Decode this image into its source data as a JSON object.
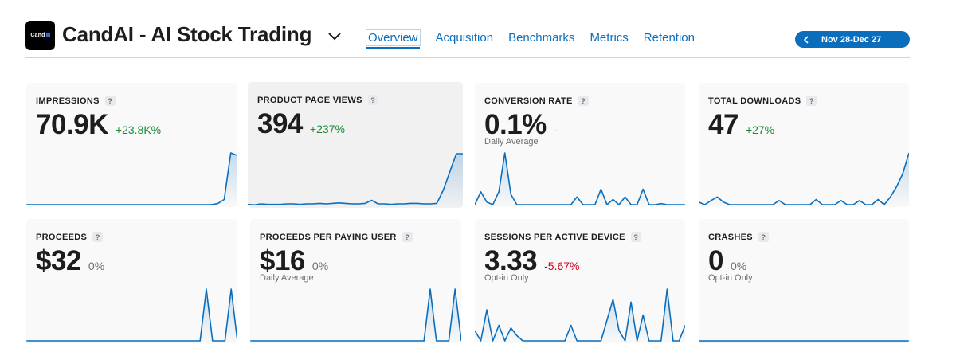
{
  "app": {
    "icon_text": "Cand",
    "title": "CandAI - AI Stock Trading"
  },
  "tabs": [
    {
      "label": "Overview",
      "active": true
    },
    {
      "label": "Acquisition",
      "active": false
    },
    {
      "label": "Benchmarks",
      "active": false
    },
    {
      "label": "Metrics",
      "active": false
    },
    {
      "label": "Retention",
      "active": false
    }
  ],
  "date_range": {
    "label": "Nov 28-Dec 27",
    "prev_icon": "chevron-left-icon"
  },
  "colors": {
    "accent": "#0a6ebd",
    "positive": "#1a8a36",
    "negative": "#d0021b",
    "neutral": "#6e6e73"
  },
  "cards": [
    {
      "id": "impressions",
      "label": "IMPRESSIONS",
      "value": "70.9K",
      "change": "+23.8K%",
      "change_type": "pos",
      "sub": "",
      "series": [
        0,
        0,
        0,
        0,
        0,
        0,
        0,
        0,
        0,
        0,
        0,
        0,
        0,
        0,
        0,
        0,
        0,
        0,
        0,
        0,
        0,
        0,
        0,
        0,
        0,
        0,
        0,
        0,
        0,
        2,
        10,
        100,
        95
      ]
    },
    {
      "id": "product-page-views",
      "label": "PRODUCT PAGE VIEWS",
      "value": "394",
      "change": "+237%",
      "change_type": "pos",
      "sub": "",
      "selected": true,
      "series": [
        2,
        1,
        3,
        2,
        2,
        2,
        3,
        3,
        2,
        3,
        3,
        4,
        3,
        4,
        5,
        4,
        3,
        3,
        4,
        10,
        3,
        3,
        2,
        3,
        3,
        4,
        4,
        3,
        3,
        4,
        30,
        65,
        100,
        100
      ]
    },
    {
      "id": "conversion-rate",
      "label": "CONVERSION RATE",
      "value": "0.1%",
      "change": "-",
      "change_type": "neg",
      "sub": "Daily Average",
      "series": [
        0,
        25,
        5,
        0,
        25,
        100,
        20,
        0,
        0,
        0,
        0,
        0,
        0,
        0,
        0,
        0,
        0,
        15,
        0,
        0,
        0,
        30,
        0,
        10,
        0,
        15,
        0,
        0,
        30,
        0,
        0,
        2,
        0,
        0,
        0,
        0
      ]
    },
    {
      "id": "total-downloads",
      "label": "TOTAL DOWNLOADS",
      "value": "47",
      "change": "+27%",
      "change_type": "pos",
      "sub": "",
      "series": [
        5,
        0,
        8,
        15,
        5,
        0,
        0,
        0,
        0,
        0,
        0,
        0,
        0,
        8,
        0,
        0,
        0,
        0,
        0,
        10,
        0,
        0,
        0,
        8,
        0,
        0,
        8,
        0,
        0,
        10,
        0,
        15,
        35,
        60,
        100
      ]
    },
    {
      "id": "proceeds",
      "label": "PROCEEDS",
      "value": "$32",
      "change": "0%",
      "change_type": "neu",
      "sub": "",
      "series": [
        0,
        0,
        0,
        0,
        0,
        0,
        0,
        0,
        0,
        0,
        0,
        0,
        0,
        0,
        0,
        0,
        0,
        0,
        0,
        0,
        0,
        0,
        0,
        0,
        0,
        0,
        0,
        0,
        0,
        100,
        0,
        0,
        0,
        100,
        0
      ]
    },
    {
      "id": "proceeds-per-paying-user",
      "label": "PROCEEDS PER PAYING USER",
      "value": "$16",
      "change": "0%",
      "change_type": "neu",
      "sub": "Daily Average",
      "series": [
        0,
        0,
        0,
        0,
        0,
        0,
        0,
        0,
        0,
        0,
        0,
        0,
        0,
        0,
        0,
        0,
        0,
        0,
        0,
        0,
        0,
        0,
        0,
        0,
        0,
        0,
        0,
        0,
        0,
        100,
        0,
        0,
        0,
        100,
        0
      ]
    },
    {
      "id": "sessions-per-active-device",
      "label": "SESSIONS PER ACTIVE DEVICE",
      "value": "3.33",
      "change": "-5.67%",
      "change_type": "neg",
      "sub": "Opt-in Only",
      "series": [
        20,
        0,
        60,
        0,
        30,
        0,
        25,
        10,
        0,
        0,
        0,
        0,
        0,
        0,
        0,
        0,
        30,
        0,
        0,
        0,
        0,
        0,
        40,
        80,
        20,
        0,
        75,
        0,
        50,
        0,
        0,
        0,
        100,
        0,
        0,
        30
      ]
    },
    {
      "id": "crashes",
      "label": "CRASHES",
      "value": "0",
      "change": "0%",
      "change_type": "neu",
      "sub": "Opt-in Only",
      "series": [
        0,
        0,
        0,
        0,
        0,
        0,
        0,
        0,
        0,
        0,
        0,
        0,
        0,
        0,
        0,
        0,
        0,
        0,
        0,
        0,
        0,
        0,
        0,
        0,
        0,
        0,
        0,
        0,
        0,
        0,
        0,
        0,
        0,
        0,
        0
      ]
    }
  ]
}
